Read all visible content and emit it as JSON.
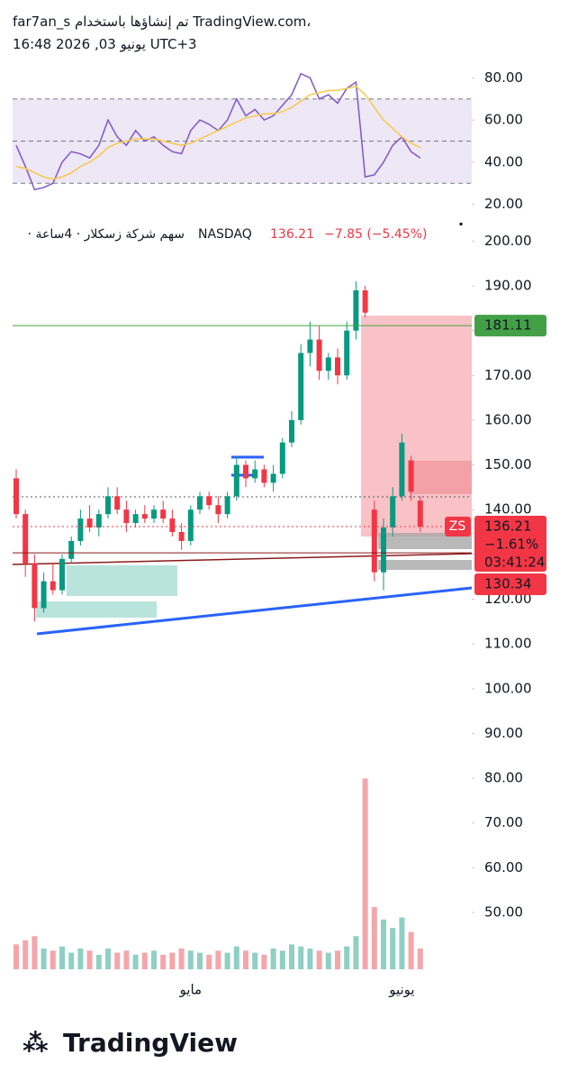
{
  "header": {
    "credit": "far7an_s تم إنشاؤها باستخدام TradingView.com،",
    "timestamp": "16:48 2026 ,03 يونيو UTC+3"
  },
  "footer": {
    "logo": "TradingView"
  },
  "chart_data": [
    {
      "type": "line",
      "levels": [
        70,
        50,
        30
      ],
      "band": [
        30,
        70
      ],
      "ylim": [
        13,
        87
      ],
      "yticks": [
        {
          "value": 80,
          "label": "80.00"
        },
        {
          "value": 60,
          "label": "60.00"
        },
        {
          "value": 40,
          "label": "40.00"
        },
        {
          "value": 20,
          "label": "20.00"
        }
      ],
      "series": [
        {
          "color": "#7e57c2",
          "values": [
            48,
            38,
            27,
            28,
            30,
            40,
            45,
            44,
            42,
            48,
            60,
            52,
            48,
            55,
            50,
            52,
            48,
            45,
            44,
            55,
            60,
            58,
            55,
            60,
            70,
            62,
            65,
            60,
            62,
            67,
            72,
            82,
            80,
            70,
            72,
            68,
            75,
            78,
            33,
            34,
            40,
            48,
            52,
            45,
            42
          ]
        },
        {
          "color": "#f7c948",
          "values": [
            38,
            37,
            35,
            33,
            32,
            33,
            35,
            38,
            40,
            43,
            47,
            49,
            50,
            51,
            51,
            51,
            50,
            49,
            48,
            49,
            51,
            53,
            55,
            57,
            59,
            61,
            62,
            63,
            63,
            64,
            66,
            69,
            72,
            73,
            74,
            74,
            75,
            76,
            72,
            66,
            60,
            56,
            52,
            49,
            47
          ]
        }
      ]
    },
    {
      "type": "candlestick",
      "name": "· سهم شركة زسكلار · 4ساعة",
      "exchange": "NASDAQ",
      "last": "136.21",
      "change": "−7.85 (−5.45%)",
      "up_color": "#089981",
      "down_color": "#f23645",
      "ylim": [
        35.3,
        204.5
      ],
      "yticks": [
        {
          "value": 200,
          "label": "200.00"
        },
        {
          "value": 190,
          "label": "190.00"
        },
        {
          "value": 180,
          "label": "180.00"
        },
        {
          "value": 170,
          "label": "170.00"
        },
        {
          "value": 160,
          "label": "160.00"
        },
        {
          "value": 150,
          "label": "150.00"
        },
        {
          "value": 140,
          "label": "140.00"
        },
        {
          "value": 130,
          "label": "130.00"
        },
        {
          "value": 120,
          "label": "120.00"
        },
        {
          "value": 110,
          "label": "110.00"
        },
        {
          "value": 100,
          "label": "100.00"
        },
        {
          "value": 90,
          "label": "90.00"
        },
        {
          "value": 80,
          "label": "80.00"
        },
        {
          "value": 70,
          "label": "70.00"
        },
        {
          "value": 60,
          "label": "60.00"
        },
        {
          "value": 50,
          "label": "50.00"
        }
      ],
      "categories": [
        null,
        null,
        null,
        null,
        null,
        null,
        null,
        null,
        null,
        null,
        null,
        null,
        null,
        null,
        null,
        null,
        null,
        null,
        null,
        "مايو",
        null,
        null,
        null,
        null,
        null,
        null,
        null,
        null,
        null,
        null,
        null,
        null,
        null,
        null,
        null,
        null,
        null,
        null,
        null,
        null,
        null,
        null,
        "يونيو",
        null,
        null
      ],
      "candles": [
        {
          "open": 147,
          "high": 149,
          "low": 138,
          "close": 139
        },
        {
          "open": 139,
          "high": 140,
          "low": 125,
          "close": 128
        },
        {
          "open": 128,
          "high": 130,
          "low": 115,
          "close": 118
        },
        {
          "open": 118,
          "high": 126,
          "low": 117,
          "close": 124
        },
        {
          "open": 124,
          "high": 128,
          "low": 121,
          "close": 122
        },
        {
          "open": 122,
          "high": 130,
          "low": 121,
          "close": 129
        },
        {
          "open": 129,
          "high": 134,
          "low": 128,
          "close": 133
        },
        {
          "open": 133,
          "high": 140,
          "low": 132,
          "close": 138
        },
        {
          "open": 138,
          "high": 141,
          "low": 135,
          "close": 136
        },
        {
          "open": 136,
          "high": 140,
          "low": 134,
          "close": 139
        },
        {
          "open": 139,
          "high": 145,
          "low": 138,
          "close": 143
        },
        {
          "open": 143,
          "high": 145,
          "low": 139,
          "close": 140
        },
        {
          "open": 140,
          "high": 142,
          "low": 135,
          "close": 137
        },
        {
          "open": 137,
          "high": 140,
          "low": 136,
          "close": 139
        },
        {
          "open": 139,
          "high": 141,
          "low": 137,
          "close": 138
        },
        {
          "open": 138,
          "high": 141,
          "low": 137,
          "close": 140
        },
        {
          "open": 140,
          "high": 142,
          "low": 137,
          "close": 138
        },
        {
          "open": 138,
          "high": 140,
          "low": 134,
          "close": 135
        },
        {
          "open": 135,
          "high": 137,
          "low": 131,
          "close": 133
        },
        {
          "open": 133,
          "high": 141,
          "low": 132,
          "close": 140
        },
        {
          "open": 140,
          "high": 144,
          "low": 139,
          "close": 143
        },
        {
          "open": 143,
          "high": 144,
          "low": 140,
          "close": 141
        },
        {
          "open": 141,
          "high": 143,
          "low": 137,
          "close": 139
        },
        {
          "open": 139,
          "high": 144,
          "low": 138,
          "close": 143
        },
        {
          "open": 143,
          "high": 152,
          "low": 142,
          "close": 150
        },
        {
          "open": 150,
          "high": 151,
          "low": 145,
          "close": 147
        },
        {
          "open": 147,
          "high": 151,
          "low": 146,
          "close": 149
        },
        {
          "open": 149,
          "high": 150,
          "low": 145,
          "close": 146
        },
        {
          "open": 146,
          "high": 150,
          "low": 144,
          "close": 148
        },
        {
          "open": 148,
          "high": 156,
          "low": 147,
          "close": 155
        },
        {
          "open": 155,
          "high": 162,
          "low": 154,
          "close": 160
        },
        {
          "open": 160,
          "high": 177,
          "low": 159,
          "close": 175
        },
        {
          "open": 175,
          "high": 182,
          "low": 172,
          "close": 178
        },
        {
          "open": 178,
          "high": 181,
          "low": 169,
          "close": 171
        },
        {
          "open": 171,
          "high": 175,
          "low": 169,
          "close": 174
        },
        {
          "open": 174,
          "high": 176,
          "low": 168,
          "close": 170
        },
        {
          "open": 170,
          "high": 182,
          "low": 169,
          "close": 180
        },
        {
          "open": 180,
          "high": 191,
          "low": 178,
          "close": 189
        },
        {
          "open": 189,
          "high": 190,
          "low": 183,
          "close": 184
        },
        {
          "open": 140,
          "high": 142,
          "low": 124,
          "close": 126
        },
        {
          "open": 126,
          "high": 138,
          "low": 122,
          "close": 136
        },
        {
          "open": 136,
          "high": 145,
          "low": 134,
          "close": 143
        },
        {
          "open": 143,
          "high": 157,
          "low": 142,
          "close": 155
        },
        {
          "open": 151,
          "high": 152,
          "low": 142,
          "close": 144
        },
        {
          "open": 142,
          "high": 143,
          "low": 135,
          "close": 136.21
        }
      ],
      "volume": {
        "ylim": [
          0,
          100
        ],
        "values": [
          12,
          14,
          16,
          10,
          9,
          11,
          8,
          10,
          9,
          7,
          10,
          8,
          9,
          7,
          8,
          9,
          7,
          8,
          10,
          9,
          8,
          7,
          9,
          8,
          11,
          9,
          8,
          7,
          10,
          9,
          12,
          11,
          10,
          9,
          8,
          9,
          11,
          16,
          92,
          30,
          24,
          20,
          25,
          18,
          10
        ]
      },
      "level": {
        "value": 181.11,
        "label": "181.11",
        "color": "#43a047"
      },
      "last_price": {
        "value": 136.21,
        "label": "136.21"
      },
      "symbol_badge": "ZS",
      "change_pct": "−1.61%",
      "countdown": "03:41:24",
      "stop": {
        "value": 130.34,
        "label": "130.34"
      }
    }
  ]
}
